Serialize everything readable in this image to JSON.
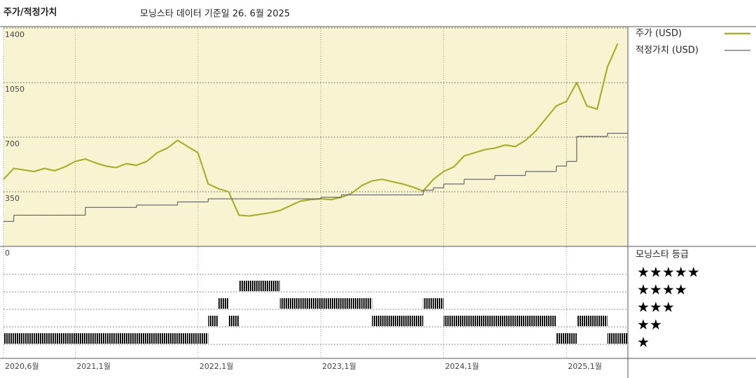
{
  "chart_data": {
    "type": "line",
    "title": "주가/적정가치",
    "subtitle": "모닝스타 데이터 기준일 26. 6월 2025",
    "x": [
      "2020-06",
      "2020-07",
      "2020-08",
      "2020-09",
      "2020-10",
      "2020-11",
      "2020-12",
      "2021-01",
      "2021-02",
      "2021-03",
      "2021-04",
      "2021-05",
      "2021-06",
      "2021-07",
      "2021-08",
      "2021-09",
      "2021-10",
      "2021-11",
      "2021-12",
      "2022-01",
      "2022-02",
      "2022-03",
      "2022-04",
      "2022-05",
      "2022-06",
      "2022-07",
      "2022-08",
      "2022-09",
      "2022-10",
      "2022-11",
      "2022-12",
      "2023-01",
      "2023-02",
      "2023-03",
      "2023-04",
      "2023-05",
      "2023-06",
      "2023-07",
      "2023-08",
      "2023-09",
      "2023-10",
      "2023-11",
      "2023-12",
      "2024-01",
      "2024-02",
      "2024-03",
      "2024-04",
      "2024-05",
      "2024-06",
      "2024-07",
      "2024-08",
      "2024-09",
      "2024-10",
      "2024-11",
      "2024-12",
      "2025-01",
      "2025-02",
      "2025-03",
      "2025-04",
      "2025-05",
      "2025-06"
    ],
    "series": [
      {
        "name": "주가 (USD)",
        "color": "#a9b02b",
        "values": [
          430,
          500,
          490,
          480,
          500,
          485,
          510,
          545,
          560,
          535,
          515,
          505,
          530,
          520,
          545,
          600,
          630,
          680,
          640,
          600,
          400,
          370,
          350,
          200,
          195,
          205,
          215,
          230,
          260,
          290,
          300,
          305,
          300,
          315,
          340,
          390,
          420,
          430,
          415,
          400,
          380,
          355,
          430,
          480,
          510,
          580,
          600,
          620,
          630,
          650,
          640,
          680,
          740,
          820,
          900,
          930,
          1050,
          900,
          880,
          1150,
          1300
        ]
      },
      {
        "name": "적정가치 (USD)",
        "color": "#666666",
        "step": true,
        "values": [
          160,
          200,
          200,
          200,
          200,
          200,
          200,
          200,
          250,
          250,
          250,
          250,
          250,
          265,
          265,
          265,
          265,
          285,
          285,
          285,
          305,
          305,
          305,
          305,
          305,
          305,
          305,
          305,
          305,
          305,
          305,
          315,
          315,
          330,
          330,
          330,
          330,
          330,
          330,
          330,
          330,
          360,
          375,
          400,
          400,
          430,
          430,
          430,
          455,
          455,
          455,
          480,
          480,
          480,
          515,
          545,
          705,
          705,
          705,
          725,
          725
        ]
      }
    ],
    "xlim": [
      "2020-06",
      "2025-07"
    ],
    "xticks": [
      {
        "value": "2020-06",
        "label": "2020,6월"
      },
      {
        "value": "2021-01",
        "label": "2021,1월"
      },
      {
        "value": "2022-01",
        "label": "2022,1월"
      },
      {
        "value": "2023-01",
        "label": "2023,1월"
      },
      {
        "value": "2024-01",
        "label": "2024,1월"
      },
      {
        "value": "2025-01",
        "label": "2025,1월"
      }
    ],
    "ylim": [
      0,
      1400
    ],
    "yticks": [
      0,
      350,
      700,
      1050,
      1400
    ],
    "grid": true,
    "background": "#f8f4d2",
    "ratings": {
      "title": "모닝스타 등급",
      "levels": [
        "★",
        "★★",
        "★★★",
        "★★★★",
        "★★★★★"
      ],
      "values": [
        1,
        1,
        1,
        1,
        1,
        1,
        1,
        1,
        1,
        1,
        1,
        1,
        1,
        1,
        1,
        1,
        1,
        1,
        1,
        1,
        2,
        3,
        2,
        4,
        4,
        4,
        4,
        3,
        3,
        3,
        3,
        3,
        3,
        3,
        3,
        3,
        2,
        2,
        2,
        2,
        2,
        3,
        3,
        2,
        2,
        2,
        2,
        2,
        2,
        2,
        2,
        2,
        2,
        2,
        1,
        1,
        2,
        2,
        2,
        1,
        1
      ]
    }
  }
}
